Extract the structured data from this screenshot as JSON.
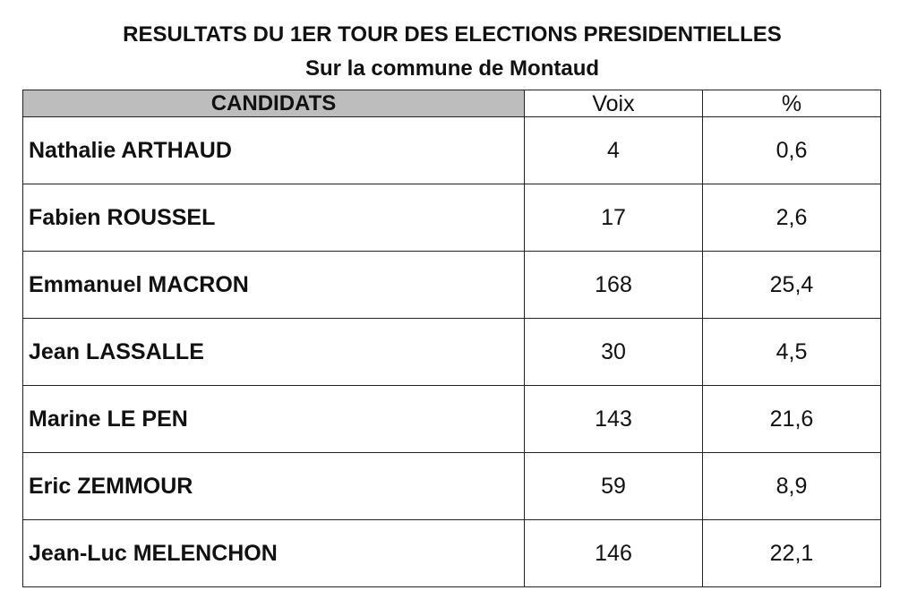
{
  "title": "RESULTATS DU 1ER TOUR DES ELECTIONS PRESIDENTIELLES",
  "subtitle": "Sur la commune de Montaud",
  "table": {
    "headers": {
      "candidats": "CANDIDATS",
      "voix": "Voix",
      "pct": "%"
    },
    "rows": [
      {
        "candidat": "Nathalie ARTHAUD",
        "voix": "4",
        "pct": "0,6"
      },
      {
        "candidat": "Fabien ROUSSEL",
        "voix": "17",
        "pct": "2,6"
      },
      {
        "candidat": "Emmanuel MACRON",
        "voix": "168",
        "pct": "25,4"
      },
      {
        "candidat": "Jean LASSALLE",
        "voix": "30",
        "pct": "4,5"
      },
      {
        "candidat": "Marine LE PEN",
        "voix": "143",
        "pct": "21,6"
      },
      {
        "candidat": "Eric ZEMMOUR",
        "voix": "59",
        "pct": "8,9"
      },
      {
        "candidat": "Jean-Luc MELENCHON",
        "voix": "146",
        "pct": "22,1"
      }
    ]
  },
  "colors": {
    "header_fill": "#bdbdbd",
    "border": "#222222",
    "text": "#111111"
  }
}
